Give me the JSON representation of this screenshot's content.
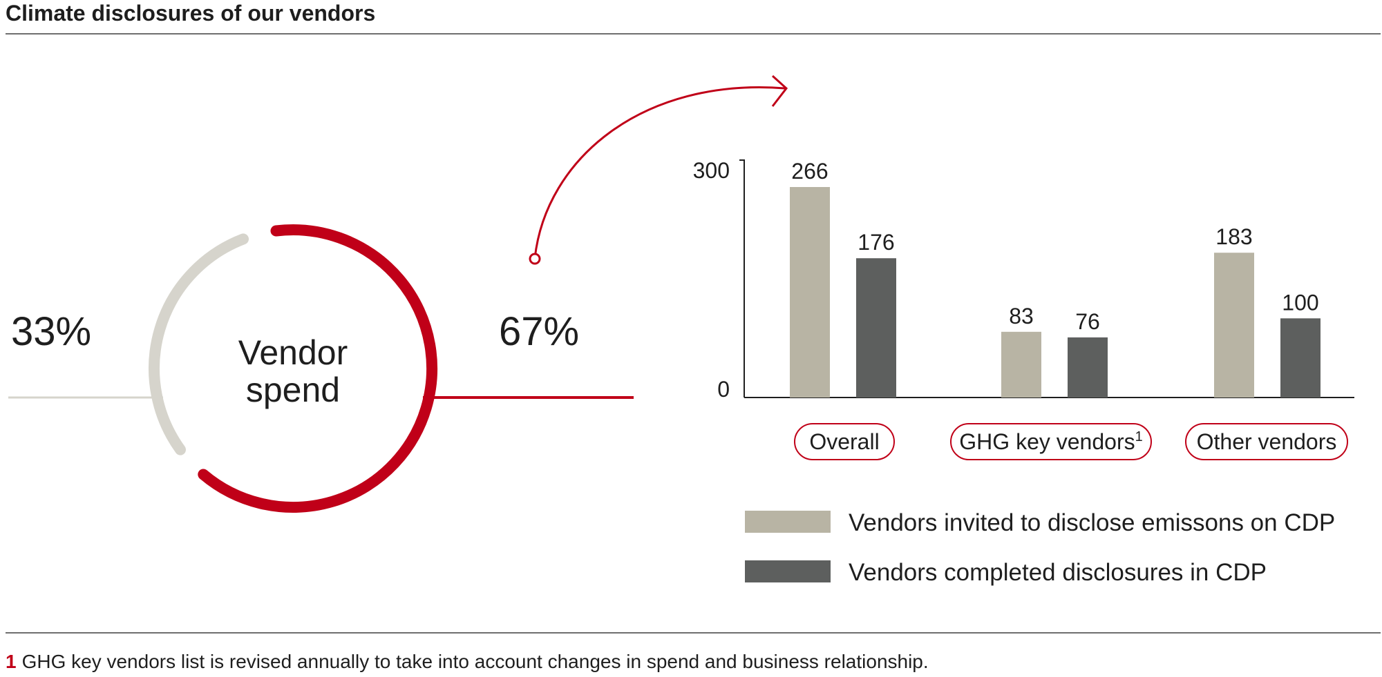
{
  "title": "Climate disclosures of our vendors",
  "donut": {
    "center_line1": "Vendor",
    "center_line2": "spend",
    "left_label": "33%",
    "right_label": "67%",
    "segments": [
      {
        "name": "left",
        "percent": 33,
        "color": "#d6d4cc"
      },
      {
        "name": "right",
        "percent": 67,
        "color": "#c00018"
      }
    ]
  },
  "chart_data": {
    "type": "bar",
    "categories": [
      "Overall",
      "GHG key vendors",
      "Other vendors"
    ],
    "category_superscripts": [
      "",
      "1",
      ""
    ],
    "series": [
      {
        "name": "Vendors invited to disclose emissons on CDP",
        "values": [
          266,
          83,
          183
        ],
        "color": "#b8b4a4"
      },
      {
        "name": "Vendors completed disclosures in CDP",
        "values": [
          176,
          76,
          100
        ],
        "color": "#5d5f5e"
      }
    ],
    "ylim": [
      0,
      300
    ],
    "yticks": [
      "0",
      "300"
    ],
    "grid": false,
    "legend_position": "bottom"
  },
  "footnote": {
    "marker": "1",
    "text": "GHG key vendors list is revised annually to take into account changes in spend and business relationship."
  }
}
